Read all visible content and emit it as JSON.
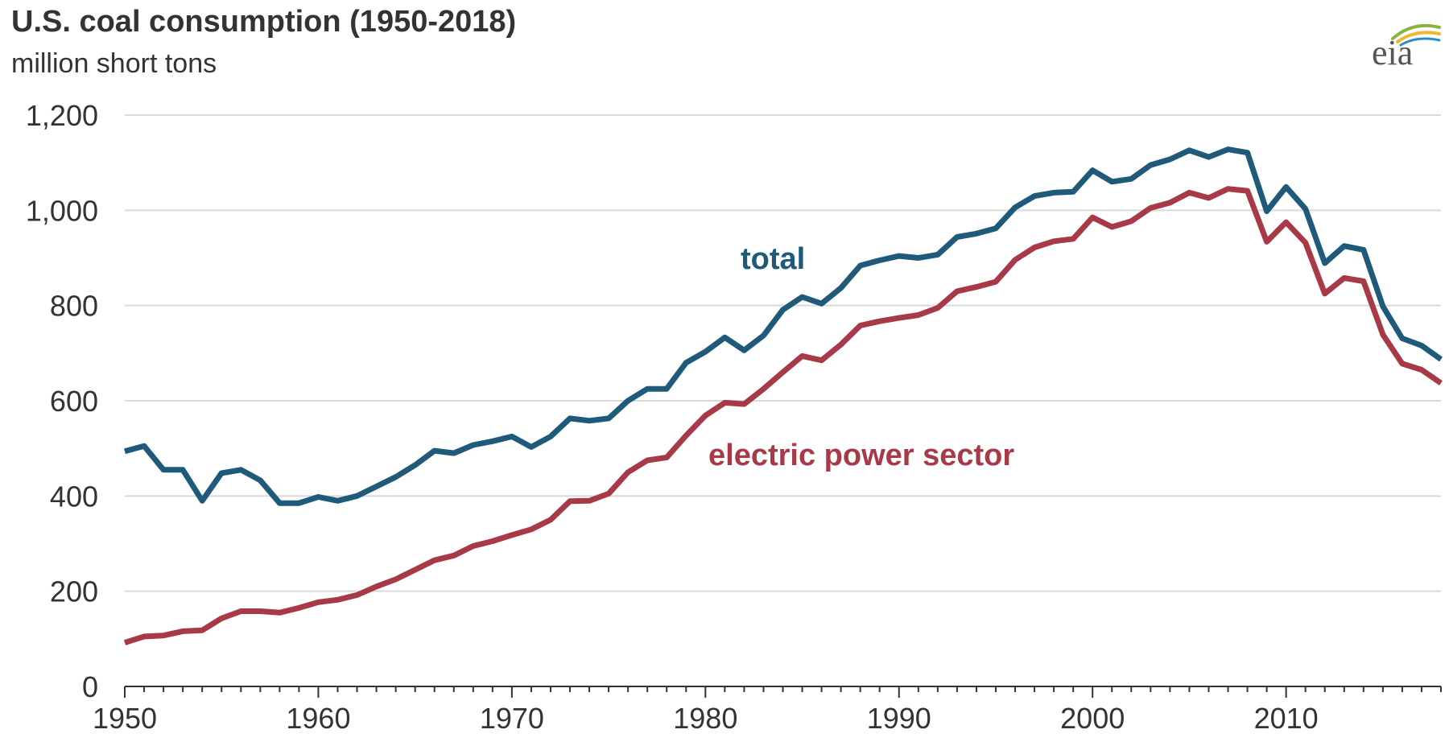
{
  "header": {
    "title": "U.S. coal consumption (1950-2018)",
    "subtitle": "million short tons",
    "logo_text": "eia"
  },
  "colors": {
    "total": "#1f5a7a",
    "electric": "#a83a48",
    "grid": "#d9d9d9",
    "axis": "#333333",
    "logo_text": "#555555",
    "logo_arc_green": "#8cb43c",
    "logo_arc_yellow": "#f2b632",
    "logo_arc_blue": "#2a8fc6"
  },
  "chart_data": {
    "type": "line",
    "title": "U.S. coal consumption (1950-2018)",
    "ylabel": "million short tons",
    "xlabel": "",
    "xlim": [
      1950,
      2018
    ],
    "ylim": [
      0,
      1200
    ],
    "yticks": [
      0,
      200,
      400,
      600,
      800,
      1000,
      1200
    ],
    "ytick_labels": [
      "0",
      "200",
      "400",
      "600",
      "800",
      "1,000",
      "1,200"
    ],
    "xticks": [
      1950,
      1960,
      1970,
      1980,
      1990,
      2000,
      2010
    ],
    "xtick_labels": [
      "1950",
      "1960",
      "1970",
      "1980",
      "1990",
      "2000",
      "2010"
    ],
    "grid": true,
    "x": [
      1950,
      1951,
      1952,
      1953,
      1954,
      1955,
      1956,
      1957,
      1958,
      1959,
      1960,
      1961,
      1962,
      1963,
      1964,
      1965,
      1966,
      1967,
      1968,
      1969,
      1970,
      1971,
      1972,
      1973,
      1974,
      1975,
      1976,
      1977,
      1978,
      1979,
      1980,
      1981,
      1982,
      1983,
      1984,
      1985,
      1986,
      1987,
      1988,
      1989,
      1990,
      1991,
      1992,
      1993,
      1994,
      1995,
      1996,
      1997,
      1998,
      1999,
      2000,
      2001,
      2002,
      2003,
      2004,
      2005,
      2006,
      2007,
      2008,
      2009,
      2010,
      2011,
      2012,
      2013,
      2014,
      2015,
      2016,
      2017,
      2018
    ],
    "series": [
      {
        "name": "total",
        "label": "total",
        "values": [
          494,
          505,
          455,
          455,
          390,
          448,
          455,
          433,
          385,
          385,
          398,
          390,
          400,
          420,
          440,
          465,
          495,
          490,
          507,
          515,
          525,
          503,
          525,
          563,
          558,
          563,
          600,
          625,
          625,
          680,
          703,
          733,
          706,
          737,
          791,
          818,
          804,
          837,
          884,
          895,
          904,
          900,
          907,
          944,
          951,
          962,
          1006,
          1030,
          1037,
          1039,
          1084,
          1060,
          1066,
          1095,
          1107,
          1126,
          1112,
          1128,
          1121,
          998,
          1049,
          1003,
          889,
          925,
          917,
          798,
          731,
          716,
          687
        ]
      },
      {
        "name": "electric power sector",
        "label": "electric power sector",
        "values": [
          92,
          105,
          107,
          116,
          118,
          143,
          158,
          158,
          155,
          165,
          177,
          182,
          192,
          210,
          225,
          245,
          265,
          275,
          295,
          305,
          318,
          330,
          350,
          389,
          390,
          405,
          450,
          475,
          481,
          527,
          569,
          596,
          593,
          625,
          660,
          694,
          685,
          718,
          758,
          767,
          774,
          780,
          795,
          830,
          839,
          850,
          896,
          922,
          935,
          940,
          985,
          965,
          977,
          1005,
          1016,
          1037,
          1026,
          1045,
          1041,
          934,
          975,
          932,
          825,
          858,
          851,
          739,
          678,
          665,
          637
        ]
      }
    ],
    "annotations": [
      {
        "text": "total",
        "series": "total"
      },
      {
        "text": "electric power sector",
        "series": "electric power sector"
      }
    ]
  }
}
